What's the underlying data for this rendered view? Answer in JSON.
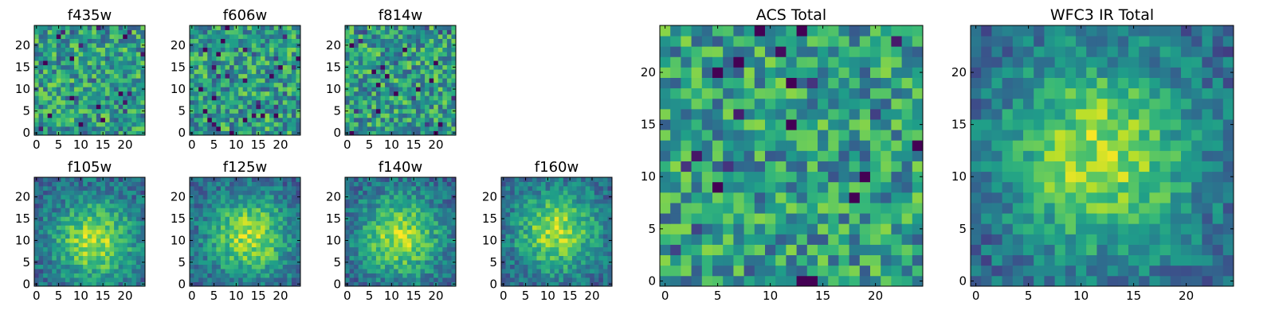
{
  "figure": {
    "background": "#ffffff"
  },
  "chart_data": [
    {
      "type": "heatmap",
      "title": "f435w",
      "size": 25,
      "xticks": [
        "0",
        "5",
        "10",
        "15",
        "20"
      ],
      "yticks": [
        "0",
        "5",
        "10",
        "15",
        "20"
      ],
      "xlim": [
        -0.5,
        24.5
      ],
      "ylim": [
        -0.5,
        24.5
      ],
      "colormap": "viridis",
      "pattern": "noise",
      "seed": 11,
      "xlabel": "",
      "ylabel": ""
    },
    {
      "type": "heatmap",
      "title": "f606w",
      "size": 25,
      "xticks": [
        "0",
        "5",
        "10",
        "15",
        "20"
      ],
      "yticks": [
        "0",
        "5",
        "10",
        "15",
        "20"
      ],
      "xlim": [
        -0.5,
        24.5
      ],
      "ylim": [
        -0.5,
        24.5
      ],
      "colormap": "viridis",
      "pattern": "noise",
      "seed": 23,
      "xlabel": "",
      "ylabel": ""
    },
    {
      "type": "heatmap",
      "title": "f814w",
      "size": 25,
      "xticks": [
        "0",
        "5",
        "10",
        "15",
        "20"
      ],
      "yticks": [
        "0",
        "5",
        "10",
        "15",
        "20"
      ],
      "xlim": [
        -0.5,
        24.5
      ],
      "ylim": [
        -0.5,
        24.5
      ],
      "colormap": "viridis",
      "pattern": "noise",
      "seed": 37,
      "xlabel": "",
      "ylabel": ""
    },
    {
      "type": "heatmap",
      "title": "f105w",
      "size": 25,
      "xticks": [
        "0",
        "5",
        "10",
        "15",
        "20"
      ],
      "yticks": [
        "0",
        "5",
        "10",
        "15",
        "20"
      ],
      "xlim": [
        -0.5,
        24.5
      ],
      "ylim": [
        -0.5,
        24.5
      ],
      "colormap": "viridis",
      "pattern": "blob",
      "peak": [
        13,
        10
      ],
      "seed": 41,
      "xlabel": "",
      "ylabel": ""
    },
    {
      "type": "heatmap",
      "title": "f125w",
      "size": 25,
      "xticks": [
        "0",
        "5",
        "10",
        "15",
        "20"
      ],
      "yticks": [
        "0",
        "5",
        "10",
        "15",
        "20"
      ],
      "xlim": [
        -0.5,
        24.5
      ],
      "ylim": [
        -0.5,
        24.5
      ],
      "colormap": "viridis",
      "pattern": "blob",
      "peak": [
        13,
        11
      ],
      "seed": 53,
      "xlabel": "",
      "ylabel": ""
    },
    {
      "type": "heatmap",
      "title": "f140w",
      "size": 25,
      "xticks": [
        "0",
        "5",
        "10",
        "15",
        "20"
      ],
      "yticks": [
        "0",
        "5",
        "10",
        "15",
        "20"
      ],
      "xlim": [
        -0.5,
        24.5
      ],
      "ylim": [
        -0.5,
        24.5
      ],
      "colormap": "viridis",
      "pattern": "blob",
      "peak": [
        12,
        11
      ],
      "seed": 67,
      "xlabel": "",
      "ylabel": ""
    },
    {
      "type": "heatmap",
      "title": "f160w",
      "size": 25,
      "xticks": [
        "0",
        "5",
        "10",
        "15",
        "20"
      ],
      "yticks": [
        "0",
        "5",
        "10",
        "15",
        "20"
      ],
      "xlim": [
        -0.5,
        24.5
      ],
      "ylim": [
        -0.5,
        24.5
      ],
      "colormap": "viridis",
      "pattern": "blob",
      "peak": [
        12,
        12
      ],
      "seed": 79,
      "xlabel": "",
      "ylabel": ""
    },
    {
      "type": "heatmap",
      "title": "ACS Total",
      "size": 25,
      "xticks": [
        "0",
        "5",
        "10",
        "15",
        "20"
      ],
      "yticks": [
        "0",
        "5",
        "10",
        "15",
        "20"
      ],
      "xlim": [
        -0.5,
        24.5
      ],
      "ylim": [
        -0.5,
        24.5
      ],
      "colormap": "viridis",
      "pattern": "noise",
      "seed": 97,
      "xlabel": "",
      "ylabel": ""
    },
    {
      "type": "heatmap",
      "title": "WFC3 IR Total",
      "size": 25,
      "xticks": [
        "0",
        "5",
        "10",
        "15",
        "20"
      ],
      "yticks": [
        "0",
        "5",
        "10",
        "15",
        "20"
      ],
      "xlim": [
        -0.5,
        24.5
      ],
      "ylim": [
        -0.5,
        24.5
      ],
      "colormap": "viridis",
      "pattern": "blob",
      "peak": [
        12,
        12
      ],
      "seed": 101,
      "xlabel": "",
      "ylabel": ""
    }
  ]
}
